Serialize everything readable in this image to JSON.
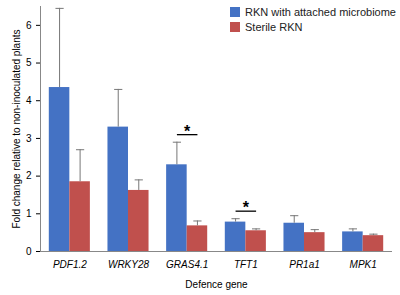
{
  "chart_data": {
    "type": "bar",
    "x_label": "Defence gene",
    "y_label": "Fold change relative to non-inoculated plants",
    "categories": [
      "PDF1.2",
      "WRKY28",
      "GRAS4.1",
      "TFT1",
      "PR1a1",
      "MPK1"
    ],
    "series": [
      {
        "name": "RKN with attached microbiome",
        "color": "#4472c4",
        "values": [
          4.35,
          3.3,
          2.3,
          0.78,
          0.75,
          0.52
        ],
        "errors": [
          2.1,
          1.0,
          0.6,
          0.09,
          0.2,
          0.08
        ]
      },
      {
        "name": "Sterile RKN",
        "color": "#c0504d",
        "values": [
          1.85,
          1.62,
          0.68,
          0.55,
          0.5,
          0.42
        ],
        "errors": [
          0.85,
          0.28,
          0.13,
          0.05,
          0.08,
          0.04
        ]
      }
    ],
    "annotations": [
      {
        "category": "GRAS4.1",
        "text": "*"
      },
      {
        "category": "TFT1",
        "text": "*"
      }
    ],
    "ylim": [
      0,
      6.5
    ],
    "yticks": [
      0,
      1,
      2,
      3,
      4,
      5,
      6
    ],
    "grid": false,
    "legend": "top-right"
  }
}
